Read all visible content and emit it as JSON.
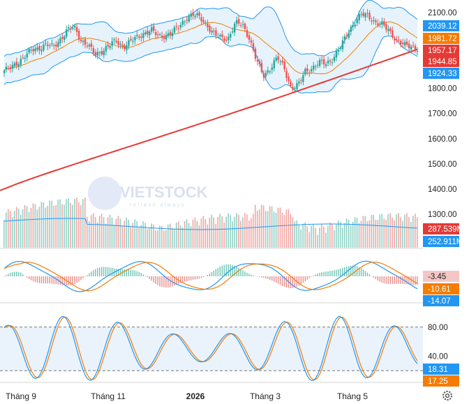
{
  "watermark": {
    "brand": "VIETSTOCK",
    "tagline": "refresh always"
  },
  "colors": {
    "up": "#26a69a",
    "down": "#ef5350",
    "bollinger": "#2196f3",
    "ma_fast": "#f57c00",
    "ma_slow": "#e53935",
    "band_fill": "#e6f3fc"
  },
  "chart_data": [
    {
      "type": "candlestick",
      "panel": "price",
      "ylim": [
        1770,
        2120
      ],
      "y_ticks": [
        "2100.00",
        "2000.00",
        "1900.00",
        "1800.00",
        "1700.00",
        "1600.00",
        "1500.00",
        "1400.00",
        "1300.00"
      ],
      "close_series": [
        1870,
        1880,
        1905,
        1930,
        1950,
        1960,
        1975,
        1960,
        1995,
        2030,
        2040,
        1990,
        1970,
        1930,
        1950,
        1970,
        1985,
        1965,
        1985,
        2000,
        2020,
        2030,
        2005,
        2010,
        2020,
        2045,
        2080,
        2090,
        2080,
        2050,
        2010,
        2000,
        2000,
        2055,
        2055,
        2000,
        1910,
        1850,
        1880,
        1920,
        1880,
        1800,
        1810,
        1870,
        1880,
        1900,
        1900,
        1920,
        1960,
        2020,
        2060,
        2090,
        2090,
        2060,
        2050,
        2030,
        1990,
        1970,
        1970,
        1957
      ],
      "labels": [
        {
          "text": "2039.12",
          "color": "#2196f3"
        },
        {
          "text": "1981.72",
          "color": "#f57c00"
        },
        {
          "text": "1957.17",
          "color": "#e53935"
        },
        {
          "text": "1944.85",
          "color": "#e53935"
        },
        {
          "text": "1924.33",
          "color": "#2196f3"
        }
      ]
    },
    {
      "type": "bar",
      "panel": "volume",
      "series_name": "Volume",
      "labels": [
        {
          "text": "287.539M",
          "color": "#e53935"
        },
        {
          "text": "252.911M",
          "color": "#2196f3"
        }
      ]
    },
    {
      "type": "line",
      "panel": "macd",
      "series_names": [
        "MACD",
        "Signal"
      ],
      "labels": [
        {
          "text": "-3.45",
          "color": "#f4c7c7",
          "text_color": "#222222"
        },
        {
          "text": "-10.61",
          "color": "#f57c00"
        },
        {
          "text": "-14.07",
          "color": "#2196f3"
        }
      ]
    },
    {
      "type": "line",
      "panel": "stochastic",
      "ylim": [
        0,
        100
      ],
      "y_ticks": [
        "80.00",
        "40.00"
      ],
      "reference_lines": [
        80,
        20
      ],
      "labels": [
        {
          "text": "18.31",
          "color": "#2196f3"
        },
        {
          "text": "17.25",
          "color": "#f57c00"
        }
      ]
    }
  ],
  "x_axis": {
    "ticks": [
      "Tháng 9",
      "Tháng 11",
      "2026",
      "Tháng 3",
      "Tháng 5"
    ],
    "bold_tick": "2026"
  },
  "icons": {
    "settings": "gear-icon"
  }
}
